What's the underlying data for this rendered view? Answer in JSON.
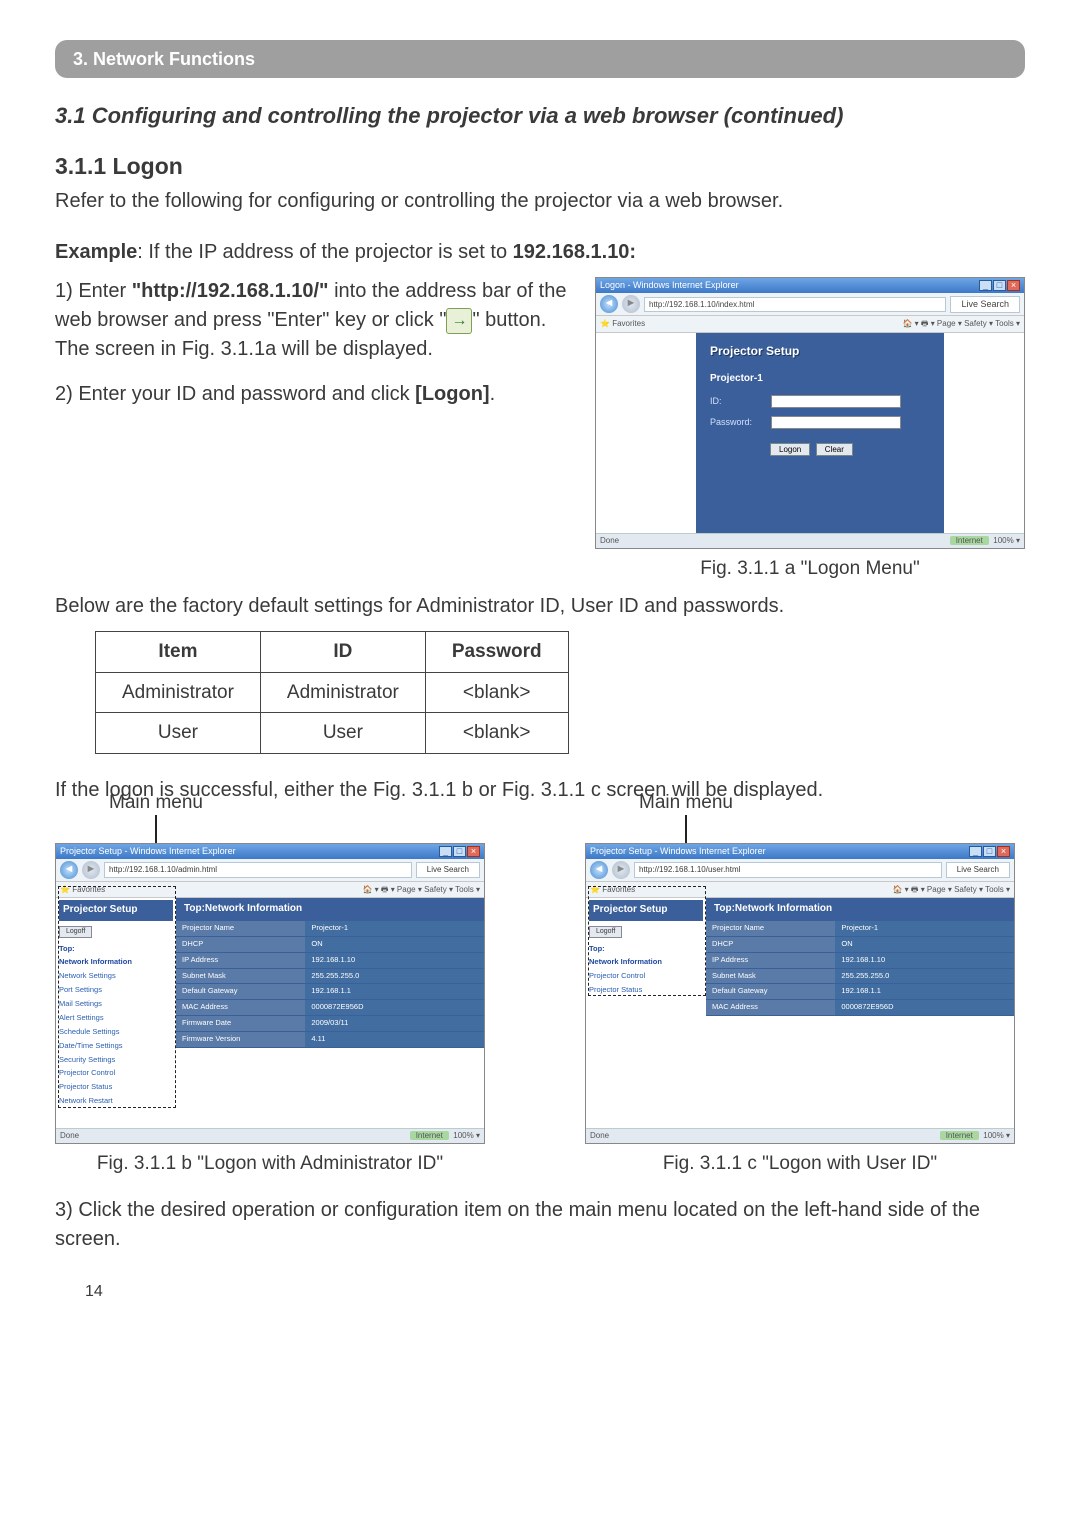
{
  "section_bar": "3. Network Functions",
  "subtitle": "3.1 Configuring and controlling the projector via a web browser (continued)",
  "heading": "3.1.1 Logon",
  "intro": "Refer to the following for configuring or controlling the projector via a web browser.",
  "example_line_pre": "Example",
  "example_line": ": If the IP address of the projector is set to ",
  "example_ip": "192.168.1.10:",
  "step1_lead": "1) Enter ",
  "step1_url": "\"http://192.168.1.10/\"",
  "step1_rest_a": " into the address bar of the web browser and press \"Enter\" key or click \"",
  "step1_arrow": "→",
  "step1_rest_b": "\" button.  The screen in Fig. 3.1.1a will be displayed.",
  "step2_a": "2) Enter your ID and password and click ",
  "step2_b": "[Logon]",
  "step2_c": ".",
  "fig_a_caption": "Fig. 3.1.1 a \"Logon Menu\"",
  "below_para": "Below are the factory default settings for Administrator ID, User ID and passwords.",
  "table": {
    "headers": [
      "Item",
      "ID",
      "Password"
    ],
    "rows": [
      [
        "Administrator",
        "Administrator",
        "<blank>"
      ],
      [
        "User",
        "User",
        "<blank>"
      ]
    ]
  },
  "after_table": "If the logon is successful, either the Fig. 3.1.1 b or Fig. 3.1.1 c screen will be displayed.",
  "main_menu_label": "Main menu",
  "fig_b_caption": "Fig. 3.1.1 b \"Logon with Administrator ID\"",
  "fig_c_caption": "Fig. 3.1.1 c \"Logon with User ID\"",
  "step3": "3) Click the desired operation or configuration item on the main menu located on the left-hand side of the screen.",
  "page_num": "14",
  "ie": {
    "title_a": "Logon - Windows Internet Explorer",
    "title_b": "Projector Setup - Windows Internet Explorer",
    "url_a": "http://192.168.1.10/index.html",
    "url_b": "http://192.168.1.10/admin.html",
    "url_c": "http://192.168.1.10/user.html",
    "fav": "Favorites",
    "tools_right": "🏠 ▾  🖶 ▾  Page ▾  Safety ▾  Tools ▾",
    "status_done": "Done",
    "zone": "Internet",
    "zoom": "100%"
  },
  "logon_panel": {
    "title": "Projector Setup",
    "sub": "Projector-1",
    "id_label": "ID:",
    "pw_label": "Password:",
    "btn_logon": "Logon",
    "btn_clear": "Clear"
  },
  "sidebar_admin": {
    "logo": "Projector Setup",
    "logout": "Logoff",
    "items": [
      {
        "label": "Top:",
        "group": true
      },
      {
        "label": "Network Information",
        "group": true
      },
      {
        "label": "Network Settings"
      },
      {
        "label": "Port Settings"
      },
      {
        "label": "Mail Settings"
      },
      {
        "label": "Alert Settings"
      },
      {
        "label": "Schedule Settings"
      },
      {
        "label": "Date/Time Settings"
      },
      {
        "label": "Security Settings"
      },
      {
        "label": "Projector Control"
      },
      {
        "label": "Projector Status"
      },
      {
        "label": "Network Restart"
      }
    ]
  },
  "sidebar_user": {
    "logo": "Projector Setup",
    "logout": "Logoff",
    "items": [
      {
        "label": "Top:",
        "group": true
      },
      {
        "label": "Network Information",
        "group": true
      },
      {
        "label": "Projector Control"
      },
      {
        "label": "Projector Status"
      }
    ]
  },
  "netinfo": {
    "header": "Top:Network Information",
    "rows_admin": [
      [
        "Projector Name",
        "Projector-1"
      ],
      [
        "DHCP",
        "ON"
      ],
      [
        "IP Address",
        "192.168.1.10"
      ],
      [
        "Subnet Mask",
        "255.255.255.0"
      ],
      [
        "Default Gateway",
        "192.168.1.1"
      ],
      [
        "MAC Address",
        "0000872E956D"
      ],
      [
        "Firmware Date",
        "2009/03/11"
      ],
      [
        "Firmware Version",
        "4.11"
      ]
    ],
    "rows_user": [
      [
        "Projector Name",
        "Projector-1"
      ],
      [
        "DHCP",
        "ON"
      ],
      [
        "IP Address",
        "192.168.1.10"
      ],
      [
        "Subnet Mask",
        "255.255.255.0"
      ],
      [
        "Default Gateway",
        "192.168.1.1"
      ],
      [
        "MAC Address",
        "0000872E956D"
      ]
    ]
  }
}
